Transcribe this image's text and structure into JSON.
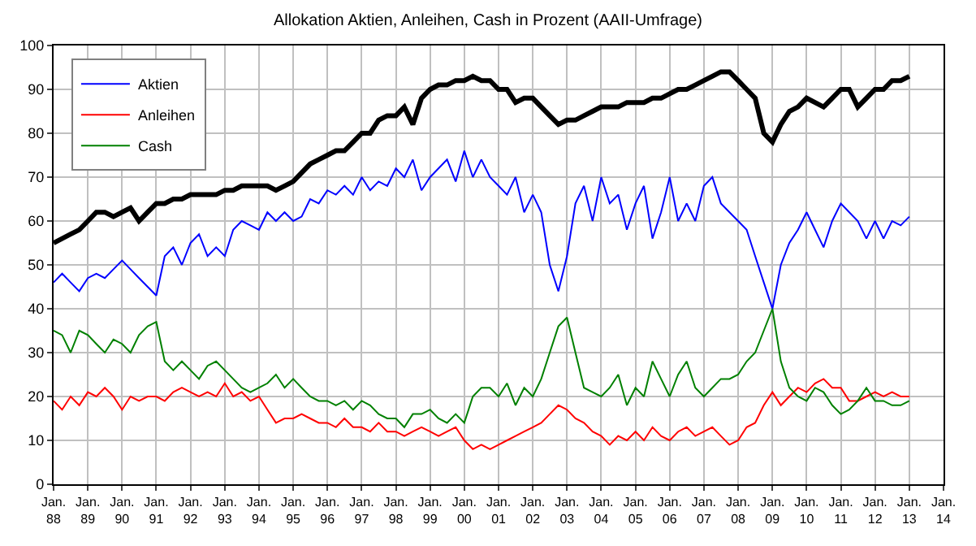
{
  "chart_data": {
    "type": "line",
    "title": "Allokation Aktien, Anleihen, Cash in Prozent (AAII-Umfrage)",
    "x": [
      "1988-01",
      "1988-04",
      "1988-07",
      "1988-10",
      "1989-01",
      "1989-04",
      "1989-07",
      "1989-10",
      "1990-01",
      "1990-04",
      "1990-07",
      "1990-10",
      "1991-01",
      "1991-04",
      "1991-07",
      "1991-10",
      "1992-01",
      "1992-04",
      "1992-07",
      "1992-10",
      "1993-01",
      "1993-04",
      "1993-07",
      "1993-10",
      "1994-01",
      "1994-04",
      "1994-07",
      "1994-10",
      "1995-01",
      "1995-04",
      "1995-07",
      "1995-10",
      "1996-01",
      "1996-04",
      "1996-07",
      "1996-10",
      "1997-01",
      "1997-04",
      "1997-07",
      "1997-10",
      "1998-01",
      "1998-04",
      "1998-07",
      "1998-10",
      "1999-01",
      "1999-04",
      "1999-07",
      "1999-10",
      "2000-01",
      "2000-04",
      "2000-07",
      "2000-10",
      "2001-01",
      "2001-04",
      "2001-07",
      "2001-10",
      "2002-01",
      "2002-04",
      "2002-07",
      "2002-10",
      "2003-01",
      "2003-04",
      "2003-07",
      "2003-10",
      "2004-01",
      "2004-04",
      "2004-07",
      "2004-10",
      "2005-01",
      "2005-04",
      "2005-07",
      "2005-10",
      "2006-01",
      "2006-04",
      "2006-07",
      "2006-10",
      "2007-01",
      "2007-04",
      "2007-07",
      "2007-10",
      "2008-01",
      "2008-04",
      "2008-07",
      "2008-10",
      "2009-01",
      "2009-04",
      "2009-07",
      "2009-10",
      "2010-01",
      "2010-04",
      "2010-07",
      "2010-10",
      "2011-01",
      "2011-04",
      "2011-07",
      "2011-10",
      "2012-01",
      "2012-04",
      "2012-07",
      "2012-10",
      "2013-01"
    ],
    "series": [
      {
        "name": "Aktien",
        "color": "#0000ff",
        "values": [
          46,
          48,
          46,
          44,
          47,
          48,
          47,
          49,
          51,
          49,
          47,
          45,
          43,
          52,
          54,
          50,
          55,
          57,
          52,
          54,
          52,
          58,
          60,
          59,
          58,
          62,
          60,
          62,
          60,
          61,
          65,
          64,
          67,
          66,
          68,
          66,
          70,
          67,
          69,
          68,
          72,
          70,
          74,
          67,
          70,
          72,
          74,
          69,
          76,
          70,
          74,
          70,
          68,
          66,
          70,
          62,
          66,
          62,
          50,
          44,
          52,
          64,
          68,
          60,
          70,
          64,
          66,
          58,
          64,
          68,
          56,
          62,
          70,
          60,
          64,
          60,
          68,
          70,
          64,
          62,
          60,
          58,
          52,
          46,
          40,
          50,
          55,
          58,
          62,
          58,
          54,
          60,
          64,
          62,
          60,
          56,
          60,
          56,
          60,
          59,
          61
        ]
      },
      {
        "name": "Anleihen",
        "color": "#ff0000",
        "values": [
          19,
          17,
          20,
          18,
          21,
          20,
          22,
          20,
          17,
          20,
          19,
          20,
          20,
          19,
          21,
          22,
          21,
          20,
          21,
          20,
          23,
          20,
          21,
          19,
          20,
          17,
          14,
          15,
          15,
          16,
          15,
          14,
          14,
          13,
          15,
          13,
          13,
          12,
          14,
          12,
          12,
          11,
          12,
          13,
          12,
          11,
          12,
          13,
          10,
          8,
          9,
          8,
          9,
          10,
          11,
          12,
          13,
          14,
          16,
          18,
          17,
          15,
          14,
          12,
          11,
          9,
          11,
          10,
          12,
          10,
          13,
          11,
          10,
          12,
          13,
          11,
          12,
          13,
          11,
          9,
          10,
          13,
          14,
          18,
          21,
          18,
          20,
          22,
          21,
          23,
          24,
          22,
          22,
          19,
          19,
          20,
          21,
          20,
          21,
          20,
          20
        ]
      },
      {
        "name": "Cash",
        "color": "#008000",
        "values": [
          35,
          34,
          30,
          35,
          34,
          32,
          30,
          33,
          32,
          30,
          34,
          36,
          37,
          28,
          26,
          28,
          26,
          24,
          27,
          28,
          26,
          24,
          22,
          21,
          22,
          23,
          25,
          22,
          24,
          22,
          20,
          19,
          19,
          18,
          19,
          17,
          19,
          18,
          16,
          15,
          15,
          13,
          16,
          16,
          17,
          15,
          14,
          16,
          14,
          20,
          22,
          22,
          20,
          23,
          18,
          22,
          20,
          24,
          30,
          36,
          38,
          30,
          22,
          21,
          20,
          22,
          25,
          18,
          22,
          20,
          28,
          24,
          20,
          25,
          28,
          22,
          20,
          22,
          24,
          24,
          25,
          28,
          30,
          35,
          40,
          28,
          22,
          20,
          19,
          22,
          21,
          18,
          16,
          17,
          19,
          22,
          19,
          19,
          18,
          18,
          19
        ]
      },
      {
        "color": "#000000",
        "values": [
          55,
          56,
          57,
          58,
          60,
          62,
          62,
          61,
          62,
          63,
          60,
          62,
          64,
          64,
          65,
          65,
          66,
          66,
          66,
          66,
          67,
          67,
          68,
          68,
          68,
          68,
          67,
          68,
          69,
          71,
          73,
          74,
          75,
          76,
          76,
          78,
          80,
          80,
          83,
          84,
          84,
          86,
          82,
          88,
          90,
          91,
          91,
          92,
          92,
          93,
          92,
          92,
          90,
          90,
          87,
          88,
          88,
          86,
          84,
          82,
          83,
          83,
          84,
          85,
          86,
          86,
          86,
          87,
          87,
          87,
          88,
          88,
          89,
          90,
          90,
          91,
          92,
          93,
          94,
          94,
          92,
          90,
          88,
          80,
          78,
          82,
          85,
          86,
          88,
          87,
          86,
          88,
          90,
          90,
          86,
          88,
          90,
          90,
          92,
          92,
          93
        ]
      }
    ],
    "xlim": [
      "1988-01",
      "2014-01"
    ],
    "xticks": [
      {
        "value": "1988-01",
        "label": "Jan.\n88"
      },
      {
        "value": "1989-01",
        "label": "Jan.\n89"
      },
      {
        "value": "1990-01",
        "label": "Jan.\n90"
      },
      {
        "value": "1991-01",
        "label": "Jan.\n91"
      },
      {
        "value": "1992-01",
        "label": "Jan.\n92"
      },
      {
        "value": "1993-01",
        "label": "Jan.\n93"
      },
      {
        "value": "1994-01",
        "label": "Jan.\n94"
      },
      {
        "value": "1995-01",
        "label": "Jan.\n95"
      },
      {
        "value": "1996-01",
        "label": "Jan.\n96"
      },
      {
        "value": "1997-01",
        "label": "Jan.\n97"
      },
      {
        "value": "1998-01",
        "label": "Jan.\n98"
      },
      {
        "value": "1999-01",
        "label": "Jan.\n99"
      },
      {
        "value": "2000-01",
        "label": "Jan.\n00"
      },
      {
        "value": "2001-01",
        "label": "Jan.\n01"
      },
      {
        "value": "2002-01",
        "label": "Jan.\n02"
      },
      {
        "value": "2003-01",
        "label": "Jan.\n03"
      },
      {
        "value": "2004-01",
        "label": "Jan.\n04"
      },
      {
        "value": "2005-01",
        "label": "Jan.\n05"
      },
      {
        "value": "2006-01",
        "label": "Jan.\n06"
      },
      {
        "value": "2007-01",
        "label": "Jan.\n07"
      },
      {
        "value": "2008-01",
        "label": "Jan.\n08"
      },
      {
        "value": "2009-01",
        "label": "Jan.\n09"
      },
      {
        "value": "2010-01",
        "label": "Jan.\n10"
      },
      {
        "value": "2011-01",
        "label": "Jan.\n11"
      },
      {
        "value": "2012-01",
        "label": "Jan.\n12"
      },
      {
        "value": "2013-01",
        "label": "Jan.\n13"
      },
      {
        "value": "2014-01",
        "label": "Jan.\n14"
      }
    ],
    "ylim": [
      0,
      100
    ],
    "yticks": [
      0,
      10,
      20,
      30,
      40,
      50,
      60,
      70,
      80,
      90,
      100
    ],
    "grid": true,
    "legend": "top left",
    "marker": "none",
    "line_style": "solid"
  }
}
